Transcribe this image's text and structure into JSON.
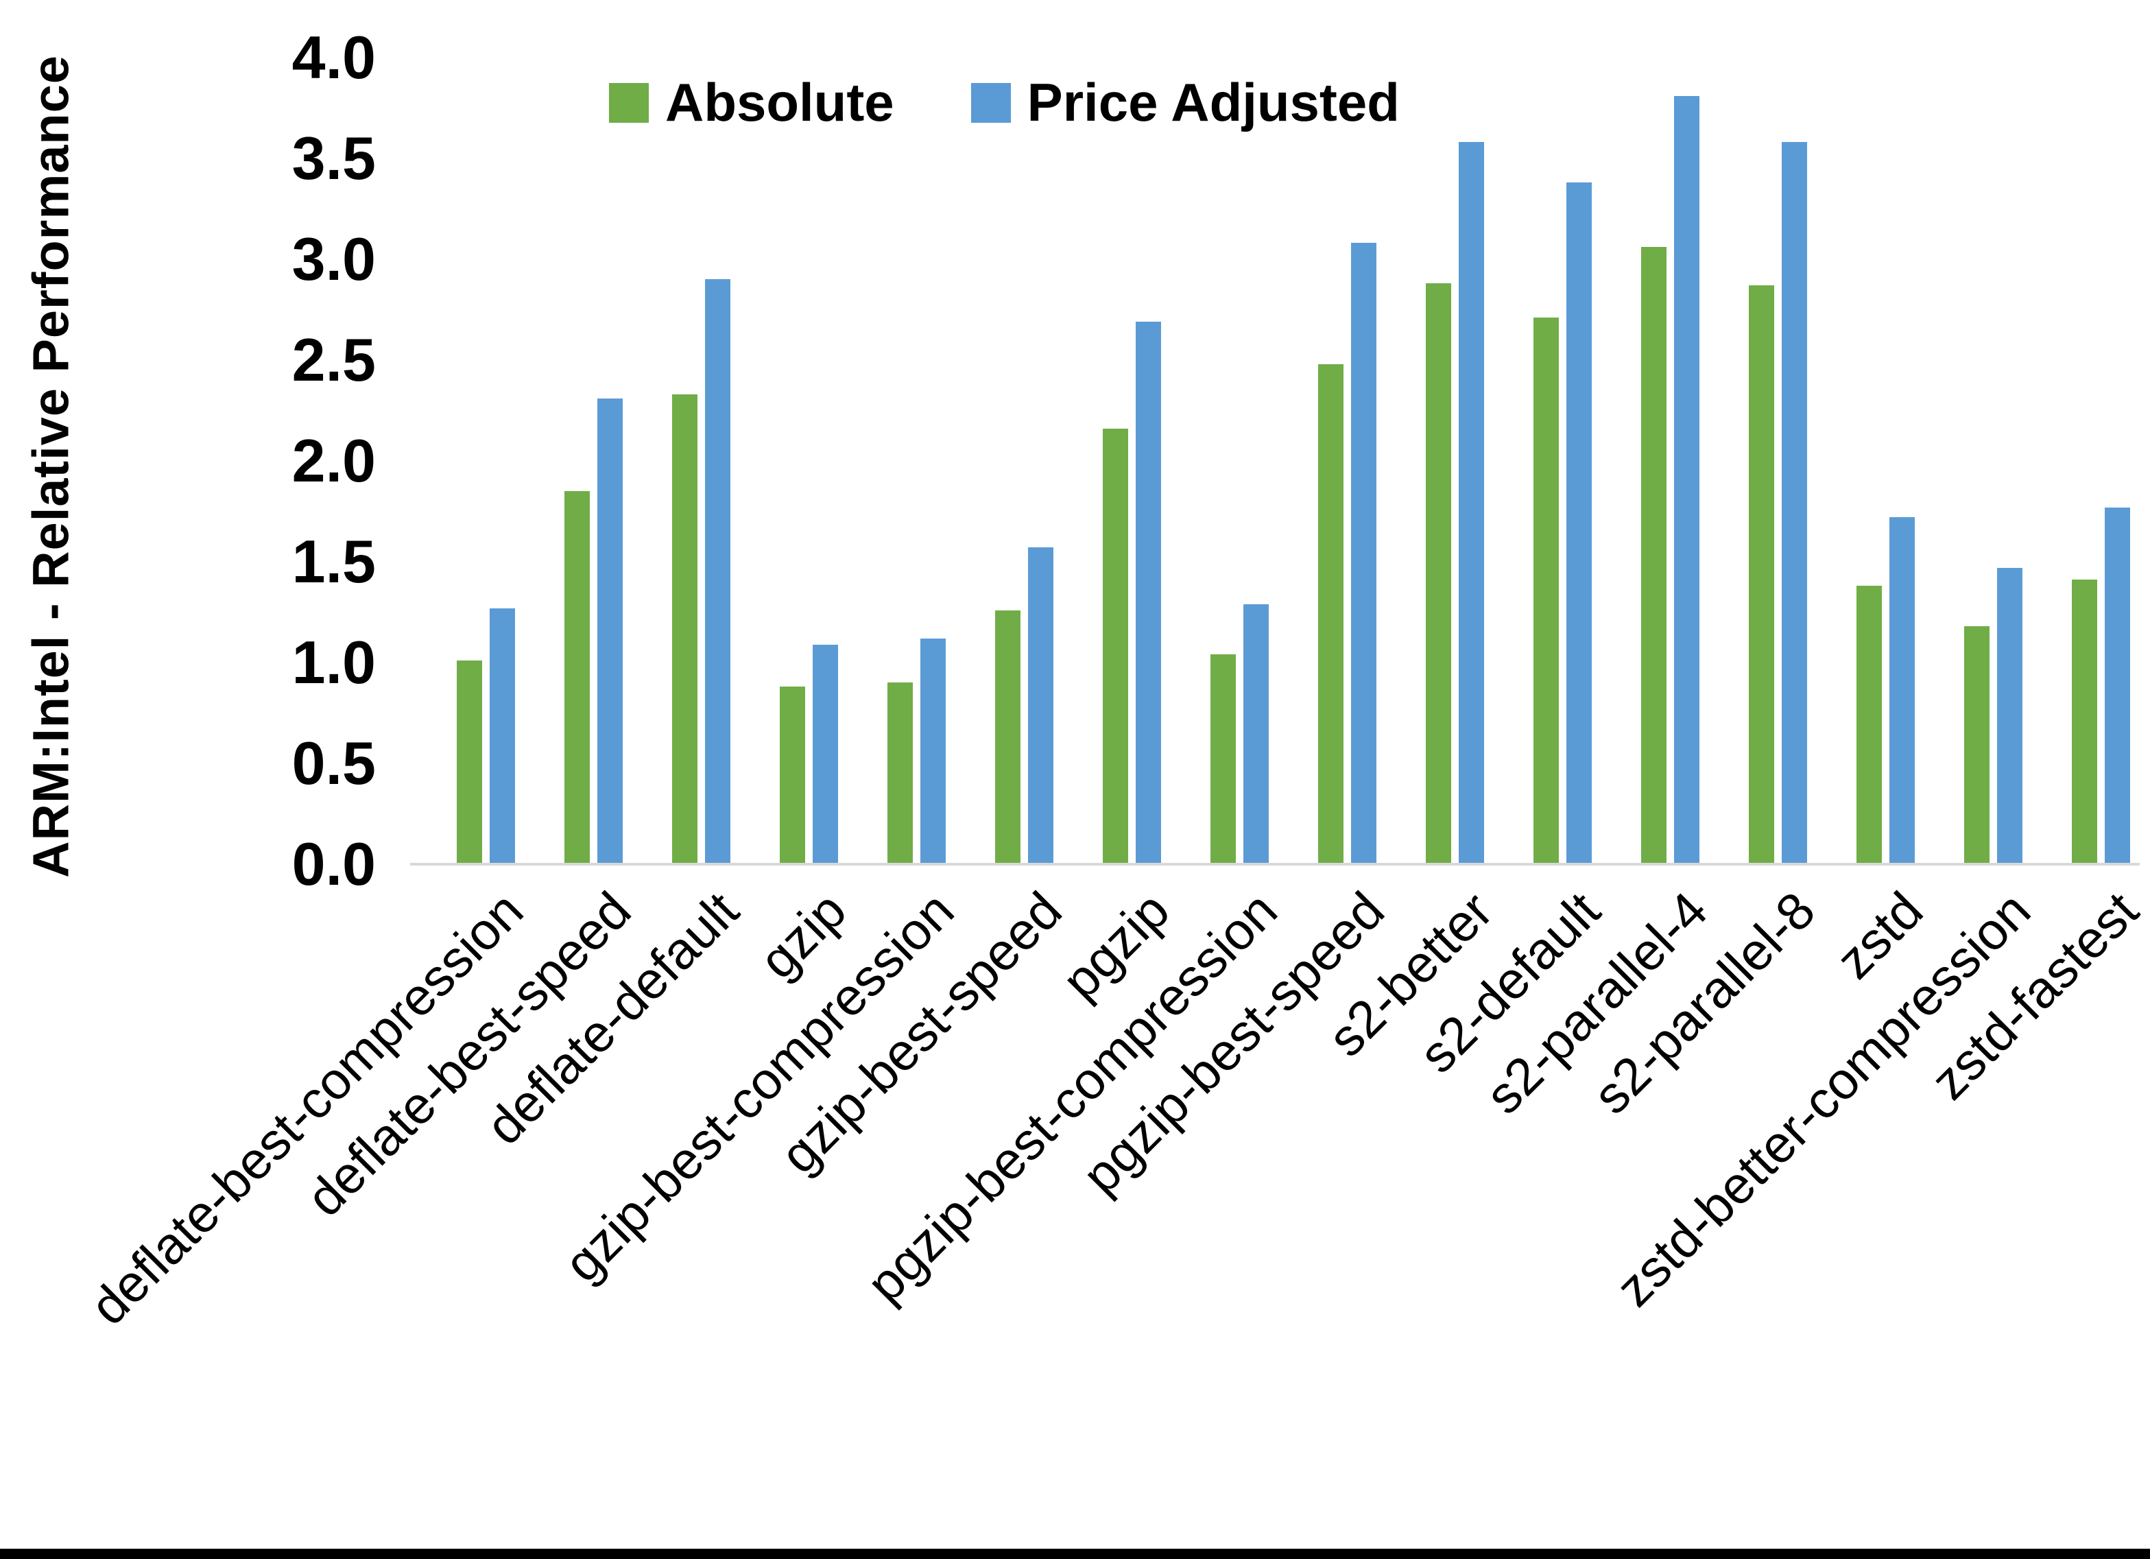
{
  "chart_data": {
    "type": "bar",
    "title": "",
    "xlabel": "",
    "ylabel": "ARM:Intel - Relative Performance",
    "ylim": [
      0.0,
      4.0
    ],
    "ytick_step": 0.5,
    "yticks": [
      "4.0",
      "3.5",
      "3.0",
      "2.5",
      "2.0",
      "1.5",
      "1.0",
      "0.5",
      "0.0"
    ],
    "grid": false,
    "legend_position": "top-inside",
    "categories": [
      "deflate-best-compression",
      "deflate-best-speed",
      "deflate-default",
      "gzip",
      "gzip-best-compression",
      "gzip-best-speed",
      "pgzip",
      "pgzip-best-compression",
      "pgzip-best-speed",
      "s2-better",
      "s2-default",
      "s2-parallel-4",
      "s2-parallel-8",
      "zstd",
      "zstd-better-compression",
      "zstd-fastest"
    ],
    "series": [
      {
        "name": "Absolute",
        "color": "#70AD47",
        "values": [
          1.01,
          1.85,
          2.33,
          0.88,
          0.9,
          1.26,
          2.16,
          1.04,
          2.48,
          2.88,
          2.71,
          3.06,
          2.87,
          1.38,
          1.18,
          1.41
        ]
      },
      {
        "name": "Price Adjusted",
        "color": "#5B9BD5",
        "values": [
          1.27,
          2.31,
          2.9,
          1.09,
          1.12,
          1.57,
          2.69,
          1.29,
          3.08,
          3.58,
          3.38,
          3.81,
          3.58,
          1.72,
          1.47,
          1.77
        ]
      }
    ]
  },
  "colors": {
    "background": "#FFFFFF",
    "axis_line": "#D9D9D9",
    "text": "#000000",
    "bottom_border": "#000000"
  }
}
